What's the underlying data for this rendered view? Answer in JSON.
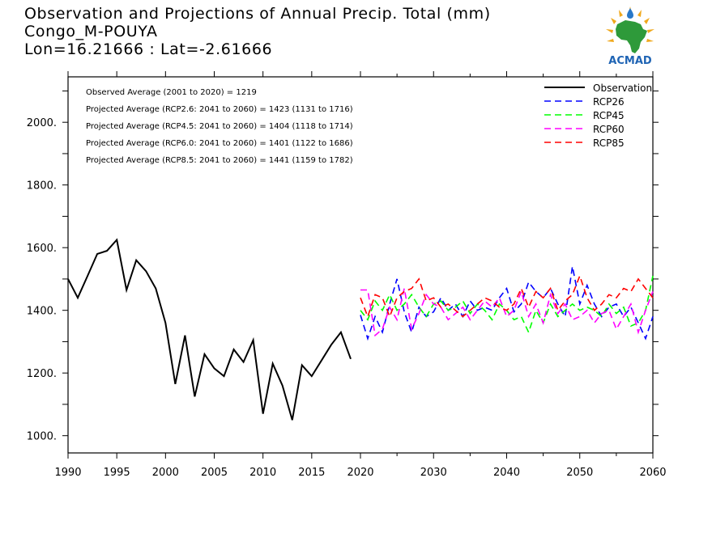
{
  "title": {
    "line1": "Observation and Projections of Annual Precip. Total (mm)",
    "line2": "Congo_M-POUYA",
    "line3": "Lon=16.21666 : Lat=-2.61666"
  },
  "logo": {
    "text": "ACMAD",
    "icon": "africa-sun-logo"
  },
  "colors": {
    "observation": "#000000",
    "rcp26": "#0000ff",
    "rcp45": "#00ff00",
    "rcp60": "#ff00ff",
    "rcp85": "#ff0000"
  },
  "chart_data": {
    "type": "line",
    "xlim": [
      1990,
      2060
    ],
    "ylim": [
      945,
      2145
    ],
    "x_tick_labels": [
      "1990",
      "1995",
      "2000",
      "2005",
      "2010",
      "2015",
      "2020",
      "2030",
      "2040",
      "2050",
      "2060"
    ],
    "y_tick_labels": [
      "1000.",
      "1200.",
      "1400.",
      "1600.",
      "1800.",
      "2000."
    ],
    "annotations": [
      "Observed Average (2001 to 2020) = 1219",
      "Projected Average (RCP2.6: 2041 to 2060) = 1423 (1131 to 1716)",
      "Projected Average (RCP4.5: 2041 to 2060) = 1404 (1118 to 1714)",
      "Projected Average (RCP6.0: 2041 to 2060) = 1401 (1122 to 1686)",
      "Projected Average (RCP8.5: 2041 to 2060) = 1441 (1159 to 1782)"
    ],
    "legend_position": "top-right",
    "series": [
      {
        "name": "Observation",
        "style": "solid",
        "x": [
          1990,
          1991,
          1992,
          1993,
          1994,
          1995,
          1996,
          1997,
          1998,
          1999,
          2000,
          2001,
          2002,
          2003,
          2004,
          2005,
          2006,
          2007,
          2008,
          2009,
          2010,
          2011,
          2012,
          2013,
          2014,
          2015,
          2016,
          2017,
          2018,
          2019,
          2020
        ],
        "values": [
          1500,
          1440,
          1510,
          1580,
          1590,
          1625,
          1465,
          1560,
          1525,
          1470,
          1360,
          1165,
          1320,
          1125,
          1260,
          1215,
          1190,
          1275,
          1235,
          1305,
          1070,
          1230,
          1160,
          1050,
          1225,
          1190,
          1240,
          1290,
          1330,
          1245,
          null
        ]
      },
      {
        "name": "RCP26",
        "style": "dashed",
        "x": [
          2020,
          2021,
          2022,
          2023,
          2024,
          2025,
          2026,
          2027,
          2028,
          2029,
          2030,
          2031,
          2032,
          2033,
          2034,
          2035,
          2036,
          2037,
          2038,
          2039,
          2040,
          2041,
          2042,
          2043,
          2044,
          2045,
          2046,
          2047,
          2048,
          2049,
          2050,
          2051,
          2052,
          2053,
          2054,
          2055,
          2056,
          2057,
          2058,
          2059,
          2060
        ],
        "values": [
          1385,
          1310,
          1380,
          1330,
          1420,
          1500,
          1395,
          1330,
          1410,
          1380,
          1395,
          1440,
          1400,
          1420,
          1380,
          1430,
          1400,
          1410,
          1400,
          1440,
          1470,
          1395,
          1420,
          1490,
          1460,
          1440,
          1470,
          1420,
          1380,
          1540,
          1420,
          1480,
          1420,
          1380,
          1410,
          1420,
          1380,
          1410,
          1360,
          1310,
          1380
        ]
      },
      {
        "name": "RCP45",
        "style": "dashed",
        "x": [
          2020,
          2021,
          2022,
          2023,
          2024,
          2025,
          2026,
          2027,
          2028,
          2029,
          2030,
          2031,
          2032,
          2033,
          2034,
          2035,
          2036,
          2037,
          2038,
          2039,
          2040,
          2041,
          2042,
          2043,
          2044,
          2045,
          2046,
          2047,
          2048,
          2049,
          2050,
          2051,
          2052,
          2053,
          2054,
          2055,
          2056,
          2057,
          2058,
          2059,
          2060
        ],
        "values": [
          1400,
          1370,
          1430,
          1400,
          1450,
          1400,
          1420,
          1450,
          1410,
          1380,
          1420,
          1430,
          1400,
          1410,
          1430,
          1390,
          1420,
          1400,
          1370,
          1420,
          1400,
          1370,
          1380,
          1330,
          1400,
          1360,
          1420,
          1380,
          1400,
          1420,
          1400,
          1410,
          1400,
          1380,
          1420,
          1390,
          1410,
          1350,
          1360,
          1400,
          1510
        ]
      },
      {
        "name": "RCP60",
        "style": "dashed",
        "x": [
          2020,
          2021,
          2022,
          2023,
          2024,
          2025,
          2026,
          2027,
          2028,
          2029,
          2030,
          2031,
          2032,
          2033,
          2034,
          2035,
          2036,
          2037,
          2038,
          2039,
          2040,
          2041,
          2042,
          2043,
          2044,
          2045,
          2046,
          2047,
          2048,
          2049,
          2050,
          2051,
          2052,
          2053,
          2054,
          2055,
          2056,
          2057,
          2058,
          2059,
          2060
        ],
        "values": [
          1465,
          1465,
          1320,
          1340,
          1410,
          1370,
          1470,
          1340,
          1390,
          1450,
          1420,
          1410,
          1370,
          1390,
          1410,
          1370,
          1400,
          1430,
          1410,
          1440,
          1380,
          1400,
          1460,
          1380,
          1420,
          1360,
          1450,
          1390,
          1420,
          1370,
          1380,
          1400,
          1360,
          1390,
          1400,
          1340,
          1380,
          1420,
          1330,
          1400,
          1460
        ]
      },
      {
        "name": "RCP85",
        "style": "dashed",
        "x": [
          2020,
          2021,
          2022,
          2023,
          2024,
          2025,
          2026,
          2027,
          2028,
          2029,
          2030,
          2031,
          2032,
          2033,
          2034,
          2035,
          2036,
          2037,
          2038,
          2039,
          2040,
          2041,
          2042,
          2043,
          2044,
          2045,
          2046,
          2047,
          2048,
          2049,
          2050,
          2051,
          2052,
          2053,
          2054,
          2055,
          2056,
          2057,
          2058,
          2059,
          2060
        ],
        "values": [
          1440,
          1380,
          1450,
          1440,
          1380,
          1440,
          1460,
          1470,
          1500,
          1430,
          1440,
          1410,
          1420,
          1400,
          1380,
          1400,
          1420,
          1440,
          1430,
          1410,
          1400,
          1420,
          1470,
          1410,
          1460,
          1440,
          1470,
          1400,
          1430,
          1450,
          1510,
          1440,
          1400,
          1420,
          1450,
          1440,
          1470,
          1460,
          1500,
          1470,
          1440
        ]
      }
    ]
  }
}
